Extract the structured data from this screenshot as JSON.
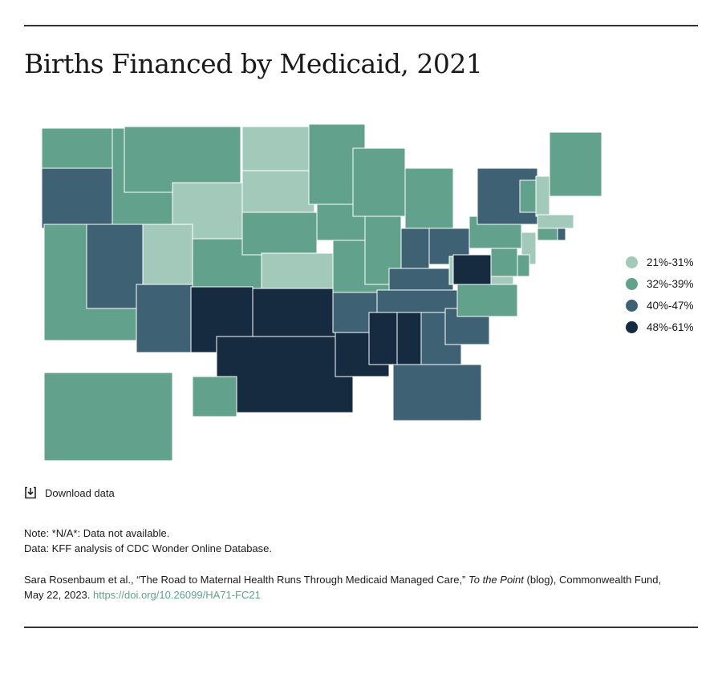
{
  "title": "Births Financed by Medicaid, 2021",
  "legend": [
    {
      "label": "21%-31%",
      "color": "#a3c9bb"
    },
    {
      "label": "32%-39%",
      "color": "#62a28c"
    },
    {
      "label": "40%-47%",
      "color": "#3e6173"
    },
    {
      "label": "48%-61%",
      "color": "#162a40"
    }
  ],
  "states": {
    "WA": 1,
    "OR": 2,
    "CA": 1,
    "NV": 2,
    "ID": 1,
    "MT": 1,
    "WY": 0,
    "UT": 0,
    "AZ": 2,
    "CO": 1,
    "NM": 3,
    "ND": 0,
    "SD": 0,
    "NE": 1,
    "KS": 0,
    "OK": 3,
    "TX": 3,
    "MN": 1,
    "IA": 1,
    "MO": 1,
    "AR": 2,
    "LA": 3,
    "WI": 1,
    "IL": 1,
    "MI": 1,
    "IN": 2,
    "OH": 2,
    "KY": 2,
    "TN": 2,
    "MS": 3,
    "AL": 3,
    "GA": 2,
    "FL": 2,
    "SC": 2,
    "NC": 1,
    "VA": 0,
    "WV": 3,
    "PA": 1,
    "NY": 2,
    "VT": 1,
    "NH": 0,
    "ME": 1,
    "MA": 0,
    "CT": 1,
    "RI": 2,
    "NJ": 0,
    "DE": 1,
    "MD": 1,
    "AK": 1,
    "HI": 1
  },
  "download_label": "Download data",
  "note": "Note: *N/A*: Data not available.",
  "data_source": "Data:  KFF analysis of CDC Wonder Online Database.",
  "citation": {
    "before": "Sara Rosenbaum et al., “The Road to Maternal Health Runs Through Medicaid Managed Care,” ",
    "italic": "To the Point",
    "after": " (blog), Commonwealth Fund,",
    "date": "May 22, 2023. ",
    "link": "https://doi.org/10.26099/HA71-FC21"
  }
}
